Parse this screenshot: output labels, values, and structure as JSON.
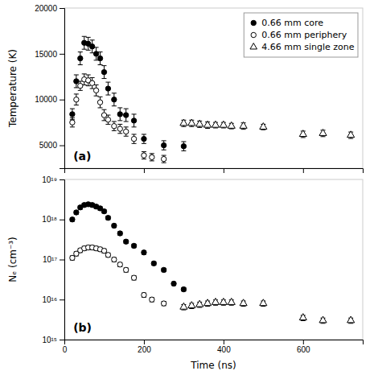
{
  "chart_data": [
    {
      "type": "scatter",
      "ylabel": "Temperature (K)",
      "annotation": "(a)",
      "xlim": [
        0,
        750
      ],
      "xticks": [
        0,
        200,
        400,
        600
      ],
      "ylim": [
        2500,
        20000
      ],
      "yticks": [
        5000,
        10000,
        15000,
        20000
      ],
      "tick_labels": "y",
      "grid": false,
      "legend": "top-right",
      "series": [
        {
          "name": "0.66 mm core",
          "color": "black",
          "marker": "circle",
          "x": [
            20,
            30,
            40,
            50,
            60,
            70,
            80,
            90,
            100,
            110,
            125,
            140,
            155,
            175,
            200,
            250,
            300
          ],
          "values": [
            8400,
            12000,
            14500,
            16200,
            16100,
            15800,
            15000,
            14500,
            13000,
            11200,
            10000,
            8400,
            8300,
            7700,
            5700,
            5000,
            4900
          ],
          "errors": [
            600,
            700,
            700,
            700,
            700,
            700,
            700,
            700,
            700,
            700,
            700,
            700,
            700,
            700,
            500,
            500,
            500
          ]
        },
        {
          "name": "0.66 mm periphery",
          "color": "black",
          "marker": "circle-open",
          "x": [
            20,
            30,
            40,
            50,
            60,
            70,
            80,
            90,
            100,
            110,
            125,
            140,
            155,
            175,
            200,
            220,
            250
          ],
          "values": [
            7500,
            10000,
            11500,
            12200,
            12100,
            11800,
            11000,
            9700,
            8300,
            7800,
            7100,
            6800,
            6500,
            5700,
            3900,
            3700,
            3500
          ],
          "errors": [
            500,
            600,
            500,
            600,
            600,
            600,
            600,
            600,
            600,
            500,
            500,
            500,
            500,
            500,
            400,
            400,
            400
          ]
        },
        {
          "name": "4.66 mm single zone",
          "color": "black",
          "marker": "triangle-open",
          "x": [
            300,
            320,
            340,
            360,
            380,
            400,
            420,
            450,
            500,
            600,
            650,
            720
          ],
          "values": [
            7400,
            7400,
            7300,
            7200,
            7200,
            7200,
            7100,
            7100,
            7000,
            6200,
            6300,
            6100
          ],
          "errors": [
            350,
            350,
            350,
            350,
            300,
            300,
            300,
            350,
            300,
            350,
            350,
            350
          ]
        }
      ]
    },
    {
      "type": "scatter",
      "xlabel": "Time (ns)",
      "ylabel": "Nₑ (cm⁻³)",
      "annotation": "(b)",
      "log": "y",
      "xlim": [
        0,
        750
      ],
      "xticks": [
        0,
        200,
        400,
        600
      ],
      "ylim": [
        1000000000000000.0,
        1e+19
      ],
      "yticks": [
        {
          "value": 1000000000000000.0,
          "label": "10¹⁵"
        },
        {
          "value": 1e+16,
          "label": "10¹⁶"
        },
        {
          "value": 1e+17,
          "label": "10¹⁷"
        },
        {
          "value": 1e+18,
          "label": "10¹⁸"
        },
        {
          "value": 1e+19,
          "label": "10¹⁹"
        }
      ],
      "grid": false,
      "series": [
        {
          "color": "black",
          "marker": "circle",
          "x": [
            20,
            30,
            40,
            50,
            60,
            70,
            80,
            90,
            100,
            110,
            125,
            140,
            155,
            175,
            200,
            225,
            250,
            275,
            300
          ],
          "values": [
            1e+18,
            1.5e+18,
            2e+18,
            2.3e+18,
            2.4e+18,
            2.3e+18,
            2.1e+18,
            1.9e+18,
            1.6e+18,
            1.1e+18,
            7e+17,
            4.5e+17,
            2.8e+17,
            2.2e+17,
            1.5e+17,
            8e+16,
            5.5e+16,
            2.5e+16,
            1.8e+16
          ],
          "errors": [
            1e+17,
            1.5e+17,
            2e+17,
            2.3e+17,
            2.4e+17,
            2.3e+17,
            2.1e+17,
            1.9e+17,
            1.6e+17,
            1.1e+17,
            7e+16,
            4.5e+16,
            2.8e+16,
            2.2e+16,
            1.5e+16,
            8000000000000000.0,
            5500000000000000.0,
            2500000000000000.0,
            1800000000000000.0
          ]
        },
        {
          "color": "black",
          "marker": "circle-open",
          "x": [
            20,
            30,
            40,
            50,
            60,
            70,
            80,
            90,
            100,
            110,
            125,
            140,
            155,
            175,
            200,
            220,
            250
          ],
          "values": [
            1.1e+17,
            1.4e+17,
            1.7e+17,
            1.9e+17,
            2e+17,
            2e+17,
            1.9e+17,
            1.8e+17,
            1.65e+17,
            1.3e+17,
            1e+17,
            7.5e+16,
            5.5e+16,
            3.5e+16,
            1.3e+16,
            1e+16,
            8000000000000000.0
          ],
          "errors": [
            1.32e+16,
            1.68e+16,
            2.04e+16,
            2.28e+16,
            2.4e+16,
            2.4e+16,
            2.28e+16,
            2.16e+16,
            1.98e+16,
            1.56e+16,
            1.2e+16,
            9000000000000000.0,
            6600000000000000.0,
            4200000000000000.0,
            1560000000000000.0,
            1200000000000000.0,
            960000000000000.0
          ]
        },
        {
          "color": "black",
          "marker": "triangle-open",
          "x": [
            300,
            320,
            340,
            360,
            380,
            400,
            420,
            450,
            500,
            600,
            650,
            720
          ],
          "values": [
            6500000000000000.0,
            7000000000000000.0,
            7500000000000000.0,
            8000000000000000.0,
            8500000000000000.0,
            8500000000000000.0,
            8500000000000000.0,
            8000000000000000.0,
            8000000000000000.0,
            3500000000000000.0,
            3000000000000000.0,
            3000000000000000.0
          ],
          "errors": [
            975000000000000.0,
            1050000000000000.0,
            1125000000000000.0,
            1200000000000000.0,
            1275000000000000.0,
            1275000000000000.0,
            1275000000000000.0,
            1200000000000000.0,
            1200000000000000.0,
            525000000000000.0,
            450000000000000.0,
            450000000000000.0
          ]
        }
      ]
    }
  ]
}
